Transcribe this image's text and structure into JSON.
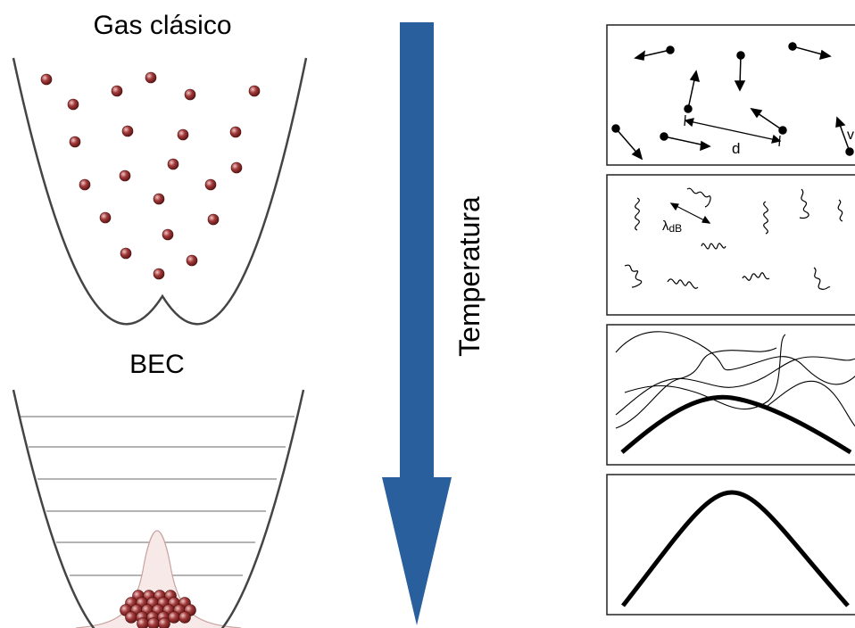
{
  "labels": {
    "classical_gas": "Gas clásico",
    "bec": "BEC",
    "temperature": "Temperatura",
    "distance_symbol": "d",
    "velocity_symbol": "v",
    "lambda_symbol": "λ",
    "lambda_subscript": "dB"
  },
  "colors": {
    "arrow": "#2a5f9e",
    "particle": "#8b2a2a",
    "trap": "#444444",
    "gaussian": "#c9a3a0"
  }
}
